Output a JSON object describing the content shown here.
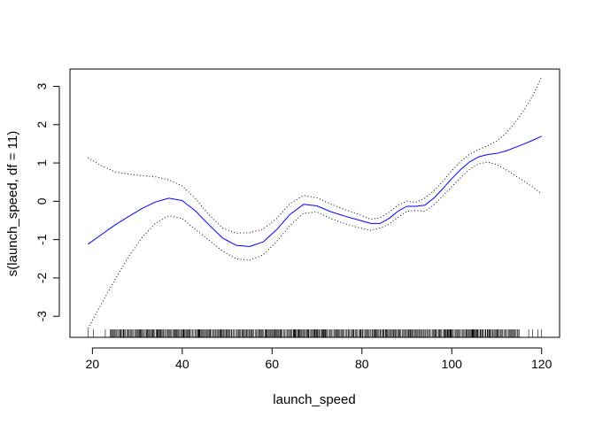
{
  "chart_data": {
    "type": "line",
    "title": "",
    "xlabel": "launch_speed",
    "ylabel": "s(launch_speed, df = 11)",
    "xlim": [
      15,
      124
    ],
    "ylim": [
      -3.55,
      3.45
    ],
    "x_ticks": [
      20,
      40,
      60,
      80,
      100,
      120
    ],
    "x_tick_labels": [
      "20",
      "40",
      "60",
      "80",
      "100",
      "120"
    ],
    "y_ticks": [
      -3,
      -2,
      -1,
      0,
      1,
      2,
      3
    ],
    "y_tick_labels": [
      "-3",
      "-2",
      "-1",
      "0",
      "1",
      "2",
      "3"
    ],
    "grid": false,
    "legend": "none",
    "series": [
      {
        "role": "fit",
        "color": "#0000ff",
        "style": "solid",
        "x": [
          19,
          22,
          25,
          28,
          31,
          34,
          37,
          40,
          43,
          46,
          49,
          52,
          55,
          58,
          61,
          64,
          67,
          70,
          73,
          76,
          79,
          82,
          84,
          86,
          88,
          90,
          92,
          94,
          96,
          98,
          100,
          102,
          104,
          106,
          108,
          110,
          112,
          114,
          116,
          118,
          120
        ],
        "y": [
          -1.12,
          -0.87,
          -0.62,
          -0.4,
          -0.19,
          -0.02,
          0.08,
          0.02,
          -0.26,
          -0.62,
          -0.96,
          -1.15,
          -1.18,
          -1.06,
          -0.74,
          -0.34,
          -0.08,
          -0.12,
          -0.27,
          -0.38,
          -0.48,
          -0.58,
          -0.58,
          -0.45,
          -0.26,
          -0.13,
          -0.13,
          -0.1,
          0.08,
          0.33,
          0.59,
          0.83,
          1.03,
          1.16,
          1.22,
          1.25,
          1.31,
          1.4,
          1.49,
          1.59,
          1.7
        ]
      },
      {
        "role": "upper-band",
        "color": "#000000",
        "style": "dotted",
        "x": [
          19,
          22,
          25,
          28,
          31,
          34,
          37,
          40,
          43,
          46,
          49,
          52,
          55,
          58,
          61,
          64,
          67,
          70,
          73,
          76,
          79,
          82,
          84,
          86,
          88,
          90,
          92,
          94,
          96,
          98,
          100,
          102,
          104,
          106,
          108,
          110,
          112,
          114,
          116,
          118,
          120
        ],
        "y": [
          1.14,
          0.93,
          0.77,
          0.71,
          0.67,
          0.64,
          0.56,
          0.4,
          0.06,
          -0.36,
          -0.7,
          -0.83,
          -0.82,
          -0.73,
          -0.45,
          -0.06,
          0.15,
          0.09,
          -0.07,
          -0.21,
          -0.33,
          -0.47,
          -0.43,
          -0.29,
          -0.1,
          0.0,
          -0.03,
          0.08,
          0.27,
          0.52,
          0.8,
          1.04,
          1.23,
          1.35,
          1.45,
          1.57,
          1.77,
          2.04,
          2.36,
          2.75,
          3.24
        ]
      },
      {
        "role": "lower-band",
        "color": "#000000",
        "style": "dotted",
        "x": [
          19,
          22,
          25,
          28,
          31,
          34,
          37,
          40,
          43,
          46,
          49,
          52,
          55,
          58,
          61,
          64,
          67,
          70,
          73,
          76,
          79,
          82,
          84,
          86,
          88,
          90,
          92,
          94,
          96,
          98,
          100,
          102,
          104,
          106,
          108,
          110,
          112,
          114,
          116,
          118,
          120
        ],
        "y": [
          -3.32,
          -2.68,
          -2.05,
          -1.45,
          -0.95,
          -0.58,
          -0.38,
          -0.45,
          -0.74,
          -1.02,
          -1.3,
          -1.5,
          -1.54,
          -1.4,
          -1.05,
          -0.63,
          -0.31,
          -0.28,
          -0.45,
          -0.58,
          -0.68,
          -0.76,
          -0.7,
          -0.6,
          -0.42,
          -0.26,
          -0.24,
          -0.26,
          -0.1,
          0.14,
          0.38,
          0.62,
          0.84,
          0.98,
          1.02,
          0.96,
          0.83,
          0.68,
          0.53,
          0.37,
          0.2
        ]
      }
    ],
    "rug": {
      "color": "#000000",
      "x_min": 19,
      "x_max": 120,
      "dense_from": 24,
      "dense_to": 115
    }
  }
}
